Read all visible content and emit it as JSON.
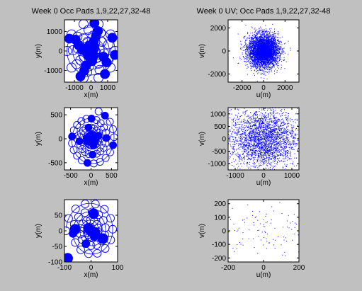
{
  "chart_data": [
    {
      "id": "p1",
      "type": "scatter",
      "title": "Week 0 Occ Pads  1,9,22,27,32-48",
      "xlabel": "x(m)",
      "ylabel": "y(m)",
      "xlim": [
        -1600,
        1600
      ],
      "ylim": [
        -1600,
        1600
      ],
      "xticks": [
        -1000,
        0,
        1000
      ],
      "yticks": [
        -1000,
        0,
        1000
      ],
      "rings": [
        {
          "r": 1450,
          "phase": 0,
          "open": 10,
          "filled": [
            0.5,
            2,
            4,
            6.5,
            8.2,
            9.5
          ]
        },
        {
          "r": 1100,
          "phase": 18,
          "open": 9,
          "filled": [
            1,
            3,
            5.5,
            7.5
          ]
        },
        {
          "r": 800,
          "phase": 36,
          "open": 8,
          "filled": [
            0.5,
            2.5,
            4.5,
            6.5
          ]
        },
        {
          "r": 520,
          "phase": 10,
          "open": 7,
          "filled": [
            1,
            3,
            5
          ]
        },
        {
          "r": 300,
          "phase": 48,
          "open": 6,
          "filled": [
            0,
            2,
            4
          ]
        }
      ],
      "center_cluster": {
        "r": 300,
        "count": 30
      },
      "marker_r": 6.5
    },
    {
      "id": "p2",
      "type": "scatter",
      "title": "Week 0 UV; Occ Pads  1,9,22,27,32-48",
      "xlabel": "u(m)",
      "ylabel": "v(m)",
      "xlim": [
        -3300,
        3300
      ],
      "ylim": [
        -2700,
        2700
      ],
      "xticks": [
        -2000,
        0,
        2000
      ],
      "yticks": [
        -2000,
        0,
        2000
      ],
      "cloud": {
        "count": 4500,
        "sigma_x": 700,
        "sigma_y": 700,
        "extent": 2900,
        "core": 600
      }
    },
    {
      "id": "p3",
      "type": "scatter",
      "title": "",
      "xlabel": "x(m)",
      "ylabel": "y(m)",
      "xlim": [
        -650,
        650
      ],
      "ylim": [
        -650,
        650
      ],
      "xticks": [
        -500,
        0,
        500
      ],
      "yticks": [
        -500,
        0,
        500
      ],
      "spiral": {
        "turns": 3.2,
        "rmax": 600,
        "open": 60,
        "filled": [
          4,
          9,
          14,
          19,
          24,
          29,
          34,
          39,
          44,
          49,
          54,
          58
        ]
      },
      "center_cluster": {
        "r": 120,
        "count": 18
      },
      "marker_r": 5
    },
    {
      "id": "p4",
      "type": "scatter",
      "title": "",
      "xlabel": "u(m)",
      "ylabel": "v(m)",
      "xlim": [
        -1250,
        1250
      ],
      "ylim": [
        -1250,
        1250
      ],
      "xticks": [
        -1000,
        0,
        1000
      ],
      "yticks": [
        -1000,
        -500,
        0,
        500,
        1000
      ],
      "cloud": {
        "count": 2600,
        "sigma_x": 600,
        "sigma_y": 600,
        "extent": 1250,
        "core": 0
      }
    },
    {
      "id": "p5",
      "type": "scatter",
      "title": "",
      "xlabel": "x(m)",
      "ylabel": "y(m)",
      "xlim": [
        -100,
        100
      ],
      "ylim": [
        -100,
        100
      ],
      "xticks": [
        -100,
        0,
        100
      ],
      "yticks": [
        -100,
        -50,
        0,
        50
      ],
      "spiral": {
        "turns": 3.5,
        "rmax": 95,
        "open": 45,
        "filled": [
          6,
          18,
          30
        ]
      },
      "big_filled": [
        [
          -88,
          -88
        ],
        [
          -60,
          5
        ],
        [
          10,
          55
        ],
        [
          45,
          -25
        ],
        [
          0,
          0
        ],
        [
          15,
          -5
        ],
        [
          -10,
          8
        ]
      ],
      "marker_r": 5.5,
      "big_r": 7
    },
    {
      "id": "p6",
      "type": "scatter",
      "title": "",
      "xlabel": "u(m)",
      "ylabel": "v(m)",
      "xlim": [
        -200,
        200
      ],
      "ylim": [
        -230,
        230
      ],
      "xticks": [
        -200,
        0,
        200
      ],
      "yticks": [
        -200,
        -100,
        0,
        100,
        200
      ],
      "cloud": {
        "count": 95,
        "sigma_x": 120,
        "sigma_y": 120,
        "extent": 210,
        "core": 0
      }
    }
  ],
  "colors": {
    "marker": "#0000ff",
    "background": "#c0c0c0",
    "axes_bg": "#ffffff"
  }
}
